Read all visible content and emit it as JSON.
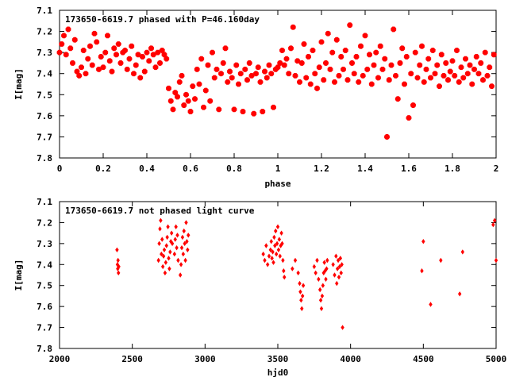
{
  "chart_data": [
    {
      "type": "scatter",
      "title": "173650-6619.7 phased with P=46.160day",
      "xlabel": "phase",
      "ylabel": "I[mag]",
      "xlim": [
        0,
        2
      ],
      "ylim": [
        7.1,
        7.8
      ],
      "y_inverted": true,
      "x_ticks": [
        "0",
        "0.2",
        "0.4",
        "0.6",
        "0.8",
        "1",
        "1.2",
        "1.4",
        "1.6",
        "1.8",
        "2"
      ],
      "y_ticks": [
        "7.1",
        "7.2",
        "7.3",
        "7.4",
        "7.5",
        "7.6",
        "7.7",
        "7.8"
      ],
      "grid": false,
      "marker": "filled-octagon",
      "color": "#ff0000",
      "points": [
        [
          0.0,
          7.3
        ],
        [
          0.01,
          7.26
        ],
        [
          0.02,
          7.22
        ],
        [
          0.03,
          7.31
        ],
        [
          0.04,
          7.19
        ],
        [
          0.05,
          7.28
        ],
        [
          0.06,
          7.35
        ],
        [
          0.07,
          7.24
        ],
        [
          0.08,
          7.39
        ],
        [
          0.09,
          7.41
        ],
        [
          0.1,
          7.37
        ],
        [
          0.11,
          7.29
        ],
        [
          0.12,
          7.4
        ],
        [
          0.13,
          7.33
        ],
        [
          0.14,
          7.27
        ],
        [
          0.15,
          7.36
        ],
        [
          0.16,
          7.21
        ],
        [
          0.17,
          7.25
        ],
        [
          0.18,
          7.38
        ],
        [
          0.19,
          7.32
        ],
        [
          0.2,
          7.37
        ],
        [
          0.21,
          7.3
        ],
        [
          0.22,
          7.22
        ],
        [
          0.23,
          7.34
        ],
        [
          0.24,
          7.39
        ],
        [
          0.25,
          7.28
        ],
        [
          0.26,
          7.31
        ],
        [
          0.27,
          7.26
        ],
        [
          0.28,
          7.35
        ],
        [
          0.29,
          7.3
        ],
        [
          0.3,
          7.29
        ],
        [
          0.31,
          7.38
        ],
        [
          0.32,
          7.33
        ],
        [
          0.33,
          7.27
        ],
        [
          0.34,
          7.4
        ],
        [
          0.35,
          7.36
        ],
        [
          0.36,
          7.31
        ],
        [
          0.37,
          7.42
        ],
        [
          0.38,
          7.32
        ],
        [
          0.39,
          7.39
        ],
        [
          0.4,
          7.3
        ],
        [
          0.41,
          7.34
        ],
        [
          0.42,
          7.28
        ],
        [
          0.43,
          7.31
        ],
        [
          0.44,
          7.37
        ],
        [
          0.45,
          7.3
        ],
        [
          0.46,
          7.35
        ],
        [
          0.47,
          7.29
        ],
        [
          0.48,
          7.31
        ],
        [
          0.49,
          7.33
        ],
        [
          0.5,
          7.47
        ],
        [
          0.51,
          7.53
        ],
        [
          0.52,
          7.57
        ],
        [
          0.53,
          7.49
        ],
        [
          0.54,
          7.51
        ],
        [
          0.55,
          7.44
        ],
        [
          0.56,
          7.41
        ],
        [
          0.57,
          7.55
        ],
        [
          0.58,
          7.5
        ],
        [
          0.59,
          7.53
        ],
        [
          0.6,
          7.58
        ],
        [
          0.61,
          7.46
        ],
        [
          0.62,
          7.52
        ],
        [
          0.63,
          7.38
        ],
        [
          0.64,
          7.45
        ],
        [
          0.65,
          7.33
        ],
        [
          0.66,
          7.56
        ],
        [
          0.67,
          7.48
        ],
        [
          0.68,
          7.36
        ],
        [
          0.69,
          7.53
        ],
        [
          0.7,
          7.3
        ],
        [
          0.71,
          7.42
        ],
        [
          0.72,
          7.38
        ],
        [
          0.73,
          7.57
        ],
        [
          0.74,
          7.4
        ],
        [
          0.75,
          7.35
        ],
        [
          0.76,
          7.28
        ],
        [
          0.77,
          7.44
        ],
        [
          0.78,
          7.39
        ],
        [
          0.79,
          7.42
        ],
        [
          0.8,
          7.57
        ],
        [
          0.81,
          7.36
        ],
        [
          0.82,
          7.45
        ],
        [
          0.83,
          7.4
        ],
        [
          0.84,
          7.58
        ],
        [
          0.85,
          7.38
        ],
        [
          0.86,
          7.43
        ],
        [
          0.87,
          7.35
        ],
        [
          0.88,
          7.41
        ],
        [
          0.89,
          7.59
        ],
        [
          0.9,
          7.4
        ],
        [
          0.91,
          7.37
        ],
        [
          0.92,
          7.44
        ],
        [
          0.93,
          7.58
        ],
        [
          0.94,
          7.39
        ],
        [
          0.95,
          7.42
        ],
        [
          0.96,
          7.36
        ],
        [
          0.97,
          7.4
        ],
        [
          0.98,
          7.56
        ],
        [
          0.99,
          7.38
        ],
        [
          1.0,
          7.37
        ],
        [
          1.01,
          7.35
        ],
        [
          1.02,
          7.29
        ],
        [
          1.03,
          7.36
        ],
        [
          1.04,
          7.33
        ],
        [
          1.05,
          7.4
        ],
        [
          1.06,
          7.28
        ],
        [
          1.07,
          7.18
        ],
        [
          1.08,
          7.41
        ],
        [
          1.09,
          7.34
        ],
        [
          1.1,
          7.44
        ],
        [
          1.11,
          7.35
        ],
        [
          1.12,
          7.26
        ],
        [
          1.13,
          7.42
        ],
        [
          1.14,
          7.32
        ],
        [
          1.15,
          7.45
        ],
        [
          1.16,
          7.29
        ],
        [
          1.17,
          7.4
        ],
        [
          1.18,
          7.47
        ],
        [
          1.19,
          7.37
        ],
        [
          1.2,
          7.25
        ],
        [
          1.21,
          7.43
        ],
        [
          1.22,
          7.35
        ],
        [
          1.23,
          7.21
        ],
        [
          1.24,
          7.38
        ],
        [
          1.25,
          7.3
        ],
        [
          1.26,
          7.44
        ],
        [
          1.27,
          7.24
        ],
        [
          1.28,
          7.41
        ],
        [
          1.29,
          7.32
        ],
        [
          1.3,
          7.38
        ],
        [
          1.31,
          7.29
        ],
        [
          1.32,
          7.43
        ],
        [
          1.33,
          7.17
        ],
        [
          1.34,
          7.35
        ],
        [
          1.35,
          7.4
        ],
        [
          1.36,
          7.32
        ],
        [
          1.37,
          7.44
        ],
        [
          1.38,
          7.27
        ],
        [
          1.39,
          7.41
        ],
        [
          1.4,
          7.22
        ],
        [
          1.41,
          7.38
        ],
        [
          1.42,
          7.31
        ],
        [
          1.43,
          7.45
        ],
        [
          1.44,
          7.36
        ],
        [
          1.45,
          7.3
        ],
        [
          1.46,
          7.42
        ],
        [
          1.47,
          7.27
        ],
        [
          1.48,
          7.38
        ],
        [
          1.49,
          7.33
        ],
        [
          1.5,
          7.7
        ],
        [
          1.51,
          7.43
        ],
        [
          1.52,
          7.36
        ],
        [
          1.53,
          7.19
        ],
        [
          1.54,
          7.41
        ],
        [
          1.55,
          7.52
        ],
        [
          1.56,
          7.35
        ],
        [
          1.57,
          7.28
        ],
        [
          1.58,
          7.45
        ],
        [
          1.59,
          7.32
        ],
        [
          1.6,
          7.61
        ],
        [
          1.61,
          7.4
        ],
        [
          1.62,
          7.55
        ],
        [
          1.63,
          7.3
        ],
        [
          1.64,
          7.42
        ],
        [
          1.65,
          7.36
        ],
        [
          1.66,
          7.27
        ],
        [
          1.67,
          7.44
        ],
        [
          1.68,
          7.38
        ],
        [
          1.69,
          7.33
        ],
        [
          1.7,
          7.42
        ],
        [
          1.71,
          7.29
        ],
        [
          1.72,
          7.4
        ],
        [
          1.73,
          7.36
        ],
        [
          1.74,
          7.46
        ],
        [
          1.75,
          7.31
        ],
        [
          1.76,
          7.41
        ],
        [
          1.77,
          7.35
        ],
        [
          1.78,
          7.43
        ],
        [
          1.79,
          7.39
        ],
        [
          1.8,
          7.34
        ],
        [
          1.81,
          7.41
        ],
        [
          1.82,
          7.29
        ],
        [
          1.83,
          7.44
        ],
        [
          1.84,
          7.37
        ],
        [
          1.85,
          7.42
        ],
        [
          1.86,
          7.33
        ],
        [
          1.87,
          7.4
        ],
        [
          1.88,
          7.36
        ],
        [
          1.89,
          7.45
        ],
        [
          1.9,
          7.38
        ],
        [
          1.91,
          7.32
        ],
        [
          1.92,
          7.4
        ],
        [
          1.93,
          7.35
        ],
        [
          1.94,
          7.43
        ],
        [
          1.95,
          7.3
        ],
        [
          1.96,
          7.41
        ],
        [
          1.97,
          7.37
        ],
        [
          1.98,
          7.46
        ],
        [
          1.99,
          7.31
        ]
      ]
    },
    {
      "type": "scatter",
      "title": "173650-6619.7 not phased light curve",
      "xlabel": "hjd0",
      "ylabel": "I[mag]",
      "xlim": [
        2000,
        5000
      ],
      "ylim": [
        7.1,
        7.8
      ],
      "y_inverted": true,
      "x_ticks": [
        "2000",
        "2500",
        "3000",
        "3500",
        "4000",
        "4500",
        "5000"
      ],
      "y_ticks": [
        "7.1",
        "7.2",
        "7.3",
        "7.4",
        "7.5",
        "7.6",
        "7.7",
        "7.8"
      ],
      "grid": false,
      "marker": "filled-diamond",
      "color": "#ff0000",
      "points": [
        [
          2395,
          7.33
        ],
        [
          2398,
          7.4
        ],
        [
          2400,
          7.42
        ],
        [
          2402,
          7.38
        ],
        [
          2405,
          7.44
        ],
        [
          2407,
          7.41
        ],
        [
          2680,
          7.38
        ],
        [
          2685,
          7.3
        ],
        [
          2690,
          7.23
        ],
        [
          2695,
          7.19
        ],
        [
          2700,
          7.35
        ],
        [
          2705,
          7.28
        ],
        [
          2710,
          7.41
        ],
        [
          2715,
          7.36
        ],
        [
          2720,
          7.33
        ],
        [
          2725,
          7.44
        ],
        [
          2730,
          7.39
        ],
        [
          2735,
          7.31
        ],
        [
          2740,
          7.27
        ],
        [
          2745,
          7.22
        ],
        [
          2750,
          7.37
        ],
        [
          2755,
          7.42
        ],
        [
          2760,
          7.34
        ],
        [
          2765,
          7.29
        ],
        [
          2770,
          7.25
        ],
        [
          2775,
          7.3
        ],
        [
          2790,
          7.35
        ],
        [
          2795,
          7.28
        ],
        [
          2800,
          7.22
        ],
        [
          2805,
          7.32
        ],
        [
          2810,
          7.26
        ],
        [
          2815,
          7.38
        ],
        [
          2830,
          7.45
        ],
        [
          2835,
          7.4
        ],
        [
          2840,
          7.32
        ],
        [
          2845,
          7.27
        ],
        [
          2850,
          7.35
        ],
        [
          2855,
          7.24
        ],
        [
          2860,
          7.3
        ],
        [
          2865,
          7.38
        ],
        [
          2870,
          7.2
        ],
        [
          2875,
          7.29
        ],
        [
          2880,
          7.33
        ],
        [
          2885,
          7.26
        ],
        [
          3400,
          7.35
        ],
        [
          3410,
          7.38
        ],
        [
          3420,
          7.31
        ],
        [
          3430,
          7.4
        ],
        [
          3440,
          7.36
        ],
        [
          3450,
          7.33
        ],
        [
          3455,
          7.29
        ],
        [
          3460,
          7.37
        ],
        [
          3465,
          7.34
        ],
        [
          3470,
          7.39
        ],
        [
          3475,
          7.27
        ],
        [
          3480,
          7.31
        ],
        [
          3485,
          7.24
        ],
        [
          3490,
          7.35
        ],
        [
          3495,
          7.3
        ],
        [
          3500,
          7.22
        ],
        [
          3505,
          7.33
        ],
        [
          3510,
          7.28
        ],
        [
          3515,
          7.36
        ],
        [
          3520,
          7.31
        ],
        [
          3525,
          7.25
        ],
        [
          3530,
          7.3
        ],
        [
          3535,
          7.38
        ],
        [
          3540,
          7.43
        ],
        [
          3545,
          7.46
        ],
        [
          3600,
          7.42
        ],
        [
          3620,
          7.38
        ],
        [
          3640,
          7.44
        ],
        [
          3650,
          7.49
        ],
        [
          3655,
          7.53
        ],
        [
          3660,
          7.57
        ],
        [
          3665,
          7.61
        ],
        [
          3670,
          7.55
        ],
        [
          3675,
          7.5
        ],
        [
          3750,
          7.41
        ],
        [
          3760,
          7.44
        ],
        [
          3770,
          7.38
        ],
        [
          3780,
          7.47
        ],
        [
          3790,
          7.52
        ],
        [
          3795,
          7.57
        ],
        [
          3800,
          7.61
        ],
        [
          3805,
          7.55
        ],
        [
          3810,
          7.5
        ],
        [
          3815,
          7.44
        ],
        [
          3820,
          7.39
        ],
        [
          3825,
          7.43
        ],
        [
          3830,
          7.47
        ],
        [
          3835,
          7.42
        ],
        [
          3840,
          7.38
        ],
        [
          3880,
          7.4
        ],
        [
          3890,
          7.45
        ],
        [
          3900,
          7.36
        ],
        [
          3905,
          7.49
        ],
        [
          3910,
          7.42
        ],
        [
          3915,
          7.38
        ],
        [
          3920,
          7.46
        ],
        [
          3925,
          7.41
        ],
        [
          3930,
          7.37
        ],
        [
          3935,
          7.44
        ],
        [
          3940,
          7.4
        ],
        [
          3945,
          7.7
        ],
        [
          4490,
          7.43
        ],
        [
          4500,
          7.29
        ],
        [
          4550,
          7.59
        ],
        [
          4620,
          7.38
        ],
        [
          4750,
          7.54
        ],
        [
          4770,
          7.34
        ],
        [
          4980,
          7.21
        ],
        [
          4990,
          7.19
        ],
        [
          5000,
          7.38
        ]
      ]
    }
  ]
}
